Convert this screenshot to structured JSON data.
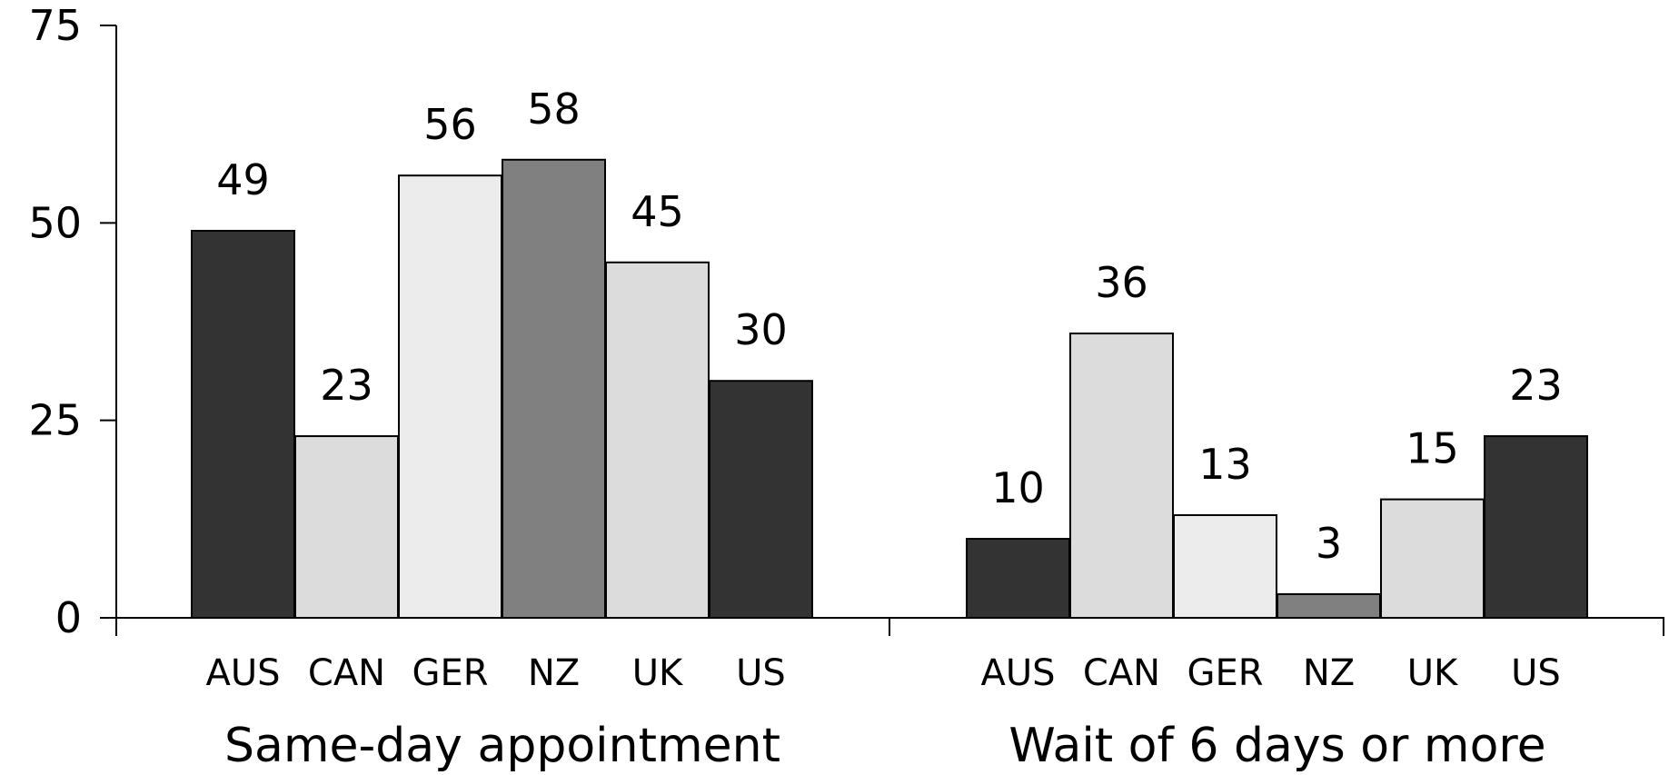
{
  "chart_data": {
    "type": "bar",
    "ylim": [
      0,
      75
    ],
    "yticks": [
      0,
      25,
      50,
      75
    ],
    "grid": false,
    "legend": "none",
    "categories": [
      "AUS",
      "CAN",
      "GER",
      "NZ",
      "UK",
      "US"
    ],
    "colors": {
      "AUS": "#333333",
      "CAN": "#dcdcdc",
      "GER": "#ececec",
      "NZ": "#808080",
      "UK": "#dcdcdc",
      "US": "#333333"
    },
    "groups": [
      {
        "label": "Same-day appointment",
        "values": [
          49,
          23,
          56,
          58,
          45,
          30
        ]
      },
      {
        "label": "Wait of 6 days or more",
        "values": [
          10,
          36,
          13,
          3,
          15,
          23
        ]
      }
    ]
  }
}
